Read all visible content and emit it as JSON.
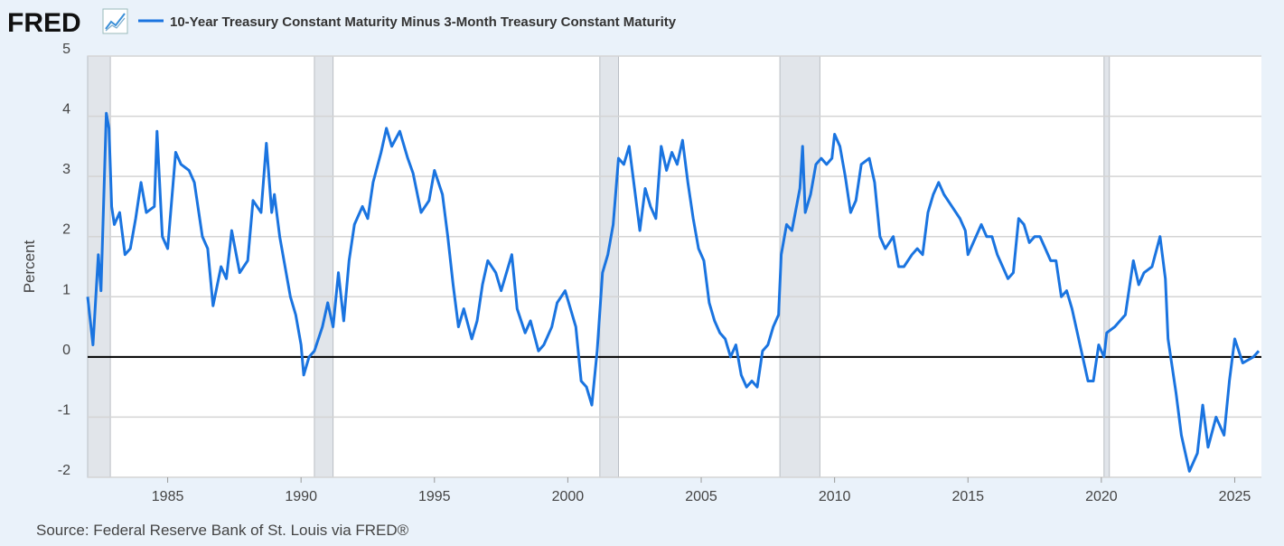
{
  "logo": "FRED",
  "chart_data": {
    "type": "line",
    "series": [
      {
        "name": "10-Year Treasury Constant Maturity Minus 3-Month Treasury Constant Maturity",
        "color": "#1a74e0",
        "values": [
          1.0,
          0.2,
          1.7,
          1.1,
          4.05,
          3.8,
          2.5,
          2.2,
          2.4,
          1.7,
          1.8,
          2.3,
          2.9,
          2.4,
          2.5,
          3.75,
          2.0,
          1.8,
          3.4,
          3.2,
          3.1,
          2.9,
          2.0,
          1.8,
          0.85,
          1.5,
          1.3,
          2.1,
          1.4,
          1.6,
          2.6,
          2.4,
          3.55,
          2.4,
          2.7,
          2.0,
          1.5,
          1.0,
          0.7,
          0.2,
          -0.3,
          0.0,
          0.1,
          0.5,
          0.9,
          0.5,
          1.4,
          0.6,
          1.6,
          2.2,
          2.5,
          2.3,
          2.9,
          3.4,
          3.8,
          3.5,
          3.75,
          3.3,
          3.05,
          2.4,
          2.6,
          3.1,
          2.7,
          2.0,
          1.2,
          0.5,
          0.8,
          0.3,
          0.6,
          1.2,
          1.6,
          1.4,
          1.1,
          1.4,
          1.7,
          0.8,
          0.4,
          0.6,
          0.1,
          0.2,
          0.5,
          0.9,
          1.1,
          0.8,
          0.5,
          -0.4,
          -0.5,
          -0.8,
          0.1,
          1.4,
          1.7,
          2.2,
          3.3,
          3.2,
          3.5,
          2.8,
          2.1,
          2.8,
          2.5,
          2.3,
          3.5,
          3.1,
          3.4,
          3.2,
          3.6,
          2.9,
          2.3,
          1.8,
          1.6,
          0.9,
          0.6,
          0.4,
          0.3,
          0.0,
          0.2,
          -0.3,
          -0.5,
          -0.4,
          -0.5,
          0.1,
          0.2,
          0.5,
          0.7,
          1.7,
          2.2,
          2.1,
          2.8,
          3.5,
          2.4,
          2.7,
          3.2,
          3.3,
          3.2,
          3.3,
          3.7,
          3.5,
          3.0,
          2.4,
          2.6,
          3.2,
          3.3,
          2.9,
          2.0,
          1.8,
          2.0,
          1.5,
          1.5,
          1.7,
          1.8,
          1.7,
          2.4,
          2.7,
          2.9,
          2.7,
          2.5,
          2.3,
          2.1,
          1.7,
          1.9,
          2.2,
          2.0,
          2.0,
          1.7,
          1.5,
          1.3,
          1.4,
          2.3,
          2.2,
          1.9,
          2.0,
          2.0,
          1.8,
          1.6,
          1.6,
          1.0,
          1.1,
          0.8,
          0.4,
          0.0,
          -0.4,
          -0.4,
          0.2,
          0.0,
          0.4,
          0.5,
          0.6,
          0.7,
          1.6,
          1.2,
          1.4,
          1.5,
          2.0,
          1.3,
          0.3,
          -0.6,
          -1.3,
          -1.9,
          -1.6,
          -0.8,
          -1.5,
          -1.0,
          -1.3,
          -0.4,
          0.3,
          -0.1,
          0.0,
          0.1
        ]
      }
    ],
    "x": [
      1982.0,
      1982.2,
      1982.4,
      1982.5,
      1982.7,
      1982.8,
      1982.9,
      1983.0,
      1983.2,
      1983.4,
      1983.6,
      1983.8,
      1984.0,
      1984.2,
      1984.5,
      1984.6,
      1984.8,
      1985.0,
      1985.3,
      1985.5,
      1985.8,
      1986.0,
      1986.3,
      1986.5,
      1986.7,
      1987.0,
      1987.2,
      1987.4,
      1987.7,
      1988.0,
      1988.2,
      1988.5,
      1988.7,
      1988.9,
      1989.0,
      1989.2,
      1989.4,
      1989.6,
      1989.8,
      1990.0,
      1990.1,
      1990.3,
      1990.5,
      1990.8,
      1991.0,
      1991.2,
      1991.4,
      1991.6,
      1991.8,
      1992.0,
      1992.3,
      1992.5,
      1992.7,
      1993.0,
      1993.2,
      1993.4,
      1993.7,
      1994.0,
      1994.2,
      1994.5,
      1994.8,
      1995.0,
      1995.3,
      1995.5,
      1995.7,
      1995.9,
      1996.1,
      1996.4,
      1996.6,
      1996.8,
      1997.0,
      1997.3,
      1997.5,
      1997.7,
      1997.9,
      1998.1,
      1998.4,
      1998.6,
      1998.9,
      1999.1,
      1999.4,
      1999.6,
      1999.9,
      2000.1,
      2000.3,
      2000.5,
      2000.7,
      2000.9,
      2001.1,
      2001.3,
      2001.5,
      2001.7,
      2001.9,
      2002.1,
      2002.3,
      2002.5,
      2002.7,
      2002.9,
      2003.1,
      2003.3,
      2003.5,
      2003.7,
      2003.9,
      2004.1,
      2004.3,
      2004.5,
      2004.7,
      2004.9,
      2005.1,
      2005.3,
      2005.5,
      2005.7,
      2005.9,
      2006.1,
      2006.3,
      2006.5,
      2006.7,
      2006.9,
      2007.1,
      2007.3,
      2007.5,
      2007.7,
      2007.9,
      2008.0,
      2008.2,
      2008.4,
      2008.7,
      2008.8,
      2008.9,
      2009.1,
      2009.3,
      2009.5,
      2009.7,
      2009.9,
      2010.0,
      2010.2,
      2010.4,
      2010.6,
      2010.8,
      2011.0,
      2011.3,
      2011.5,
      2011.7,
      2011.9,
      2012.2,
      2012.4,
      2012.6,
      2012.9,
      2013.1,
      2013.3,
      2013.5,
      2013.7,
      2013.9,
      2014.1,
      2014.4,
      2014.7,
      2014.9,
      2015.0,
      2015.2,
      2015.5,
      2015.7,
      2015.9,
      2016.1,
      2016.3,
      2016.5,
      2016.7,
      2016.9,
      2017.1,
      2017.3,
      2017.5,
      2017.7,
      2017.9,
      2018.1,
      2018.3,
      2018.5,
      2018.7,
      2018.9,
      2019.1,
      2019.3,
      2019.5,
      2019.7,
      2019.9,
      2020.1,
      2020.2,
      2020.5,
      2020.7,
      2020.9,
      2021.2,
      2021.4,
      2021.6,
      2021.9,
      2022.2,
      2022.4,
      2022.5,
      2022.8,
      2023.0,
      2023.3,
      2023.6,
      2023.8,
      2024.0,
      2024.3,
      2024.6,
      2024.8,
      2025.0,
      2025.3,
      2025.7,
      2025.9
    ],
    "xlim": [
      1982,
      2026
    ],
    "xticks": [
      1985,
      1990,
      1995,
      2000,
      2005,
      2010,
      2015,
      2020,
      2025
    ],
    "ylim": [
      -2,
      5
    ],
    "yticks": [
      -2,
      -1,
      0,
      1,
      2,
      3,
      4,
      5
    ],
    "ylabel": "Percent",
    "grid": true,
    "shaded_periods": [
      [
        1982.0,
        1982.85
      ],
      [
        1990.5,
        1991.2
      ],
      [
        2001.2,
        2001.9
      ],
      [
        2007.95,
        2009.45
      ],
      [
        2020.1,
        2020.3
      ]
    ],
    "shade_color": "#e1e5ea",
    "source": "Source: Federal Reserve Bank of St. Louis via FRED®"
  }
}
